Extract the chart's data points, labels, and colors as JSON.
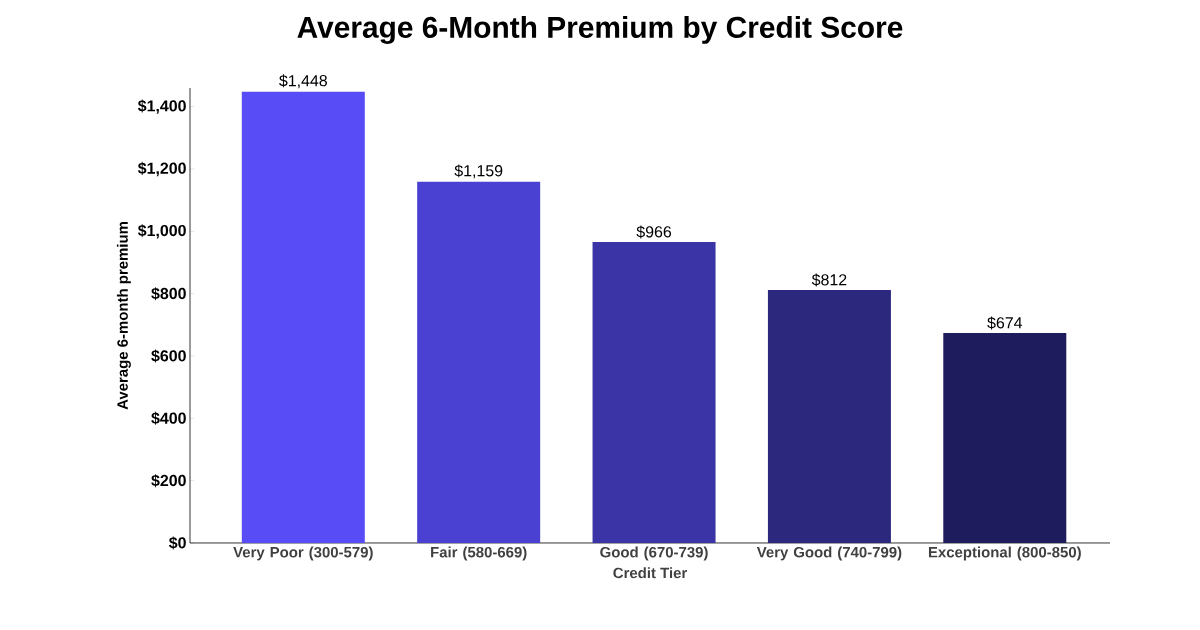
{
  "chart_data": {
    "type": "bar",
    "title": "Average 6-Month Premium by Credit Score",
    "xlabel": "Credit Tier",
    "ylabel": "Average 6-month premium",
    "categories": [
      "Very Poor (300-579)",
      "Fair (580-669)",
      "Good (670-739)",
      "Very Good (740-799)",
      "Exceptional (800-850)"
    ],
    "values": [
      1448,
      1159,
      966,
      812,
      674
    ],
    "colors": [
      "#584cf6",
      "#4a40d2",
      "#3a34a6",
      "#2c287e",
      "#1e1c5c"
    ],
    "value_labels": [
      "$1,448",
      "$1,159",
      "$966",
      "$812",
      "$674"
    ],
    "ylim": [
      0,
      1460
    ],
    "yticks": [
      {
        "value": 0,
        "label": "$0"
      },
      {
        "value": 200,
        "label": "$200"
      },
      {
        "value": 400,
        "label": "$400"
      },
      {
        "value": 600,
        "label": "$600"
      },
      {
        "value": 800,
        "label": "$800"
      },
      {
        "value": 1000,
        "label": "$1,000"
      },
      {
        "value": 1200,
        "label": "$1,200"
      },
      {
        "value": 1400,
        "label": "$1,400"
      }
    ],
    "grid": false
  }
}
